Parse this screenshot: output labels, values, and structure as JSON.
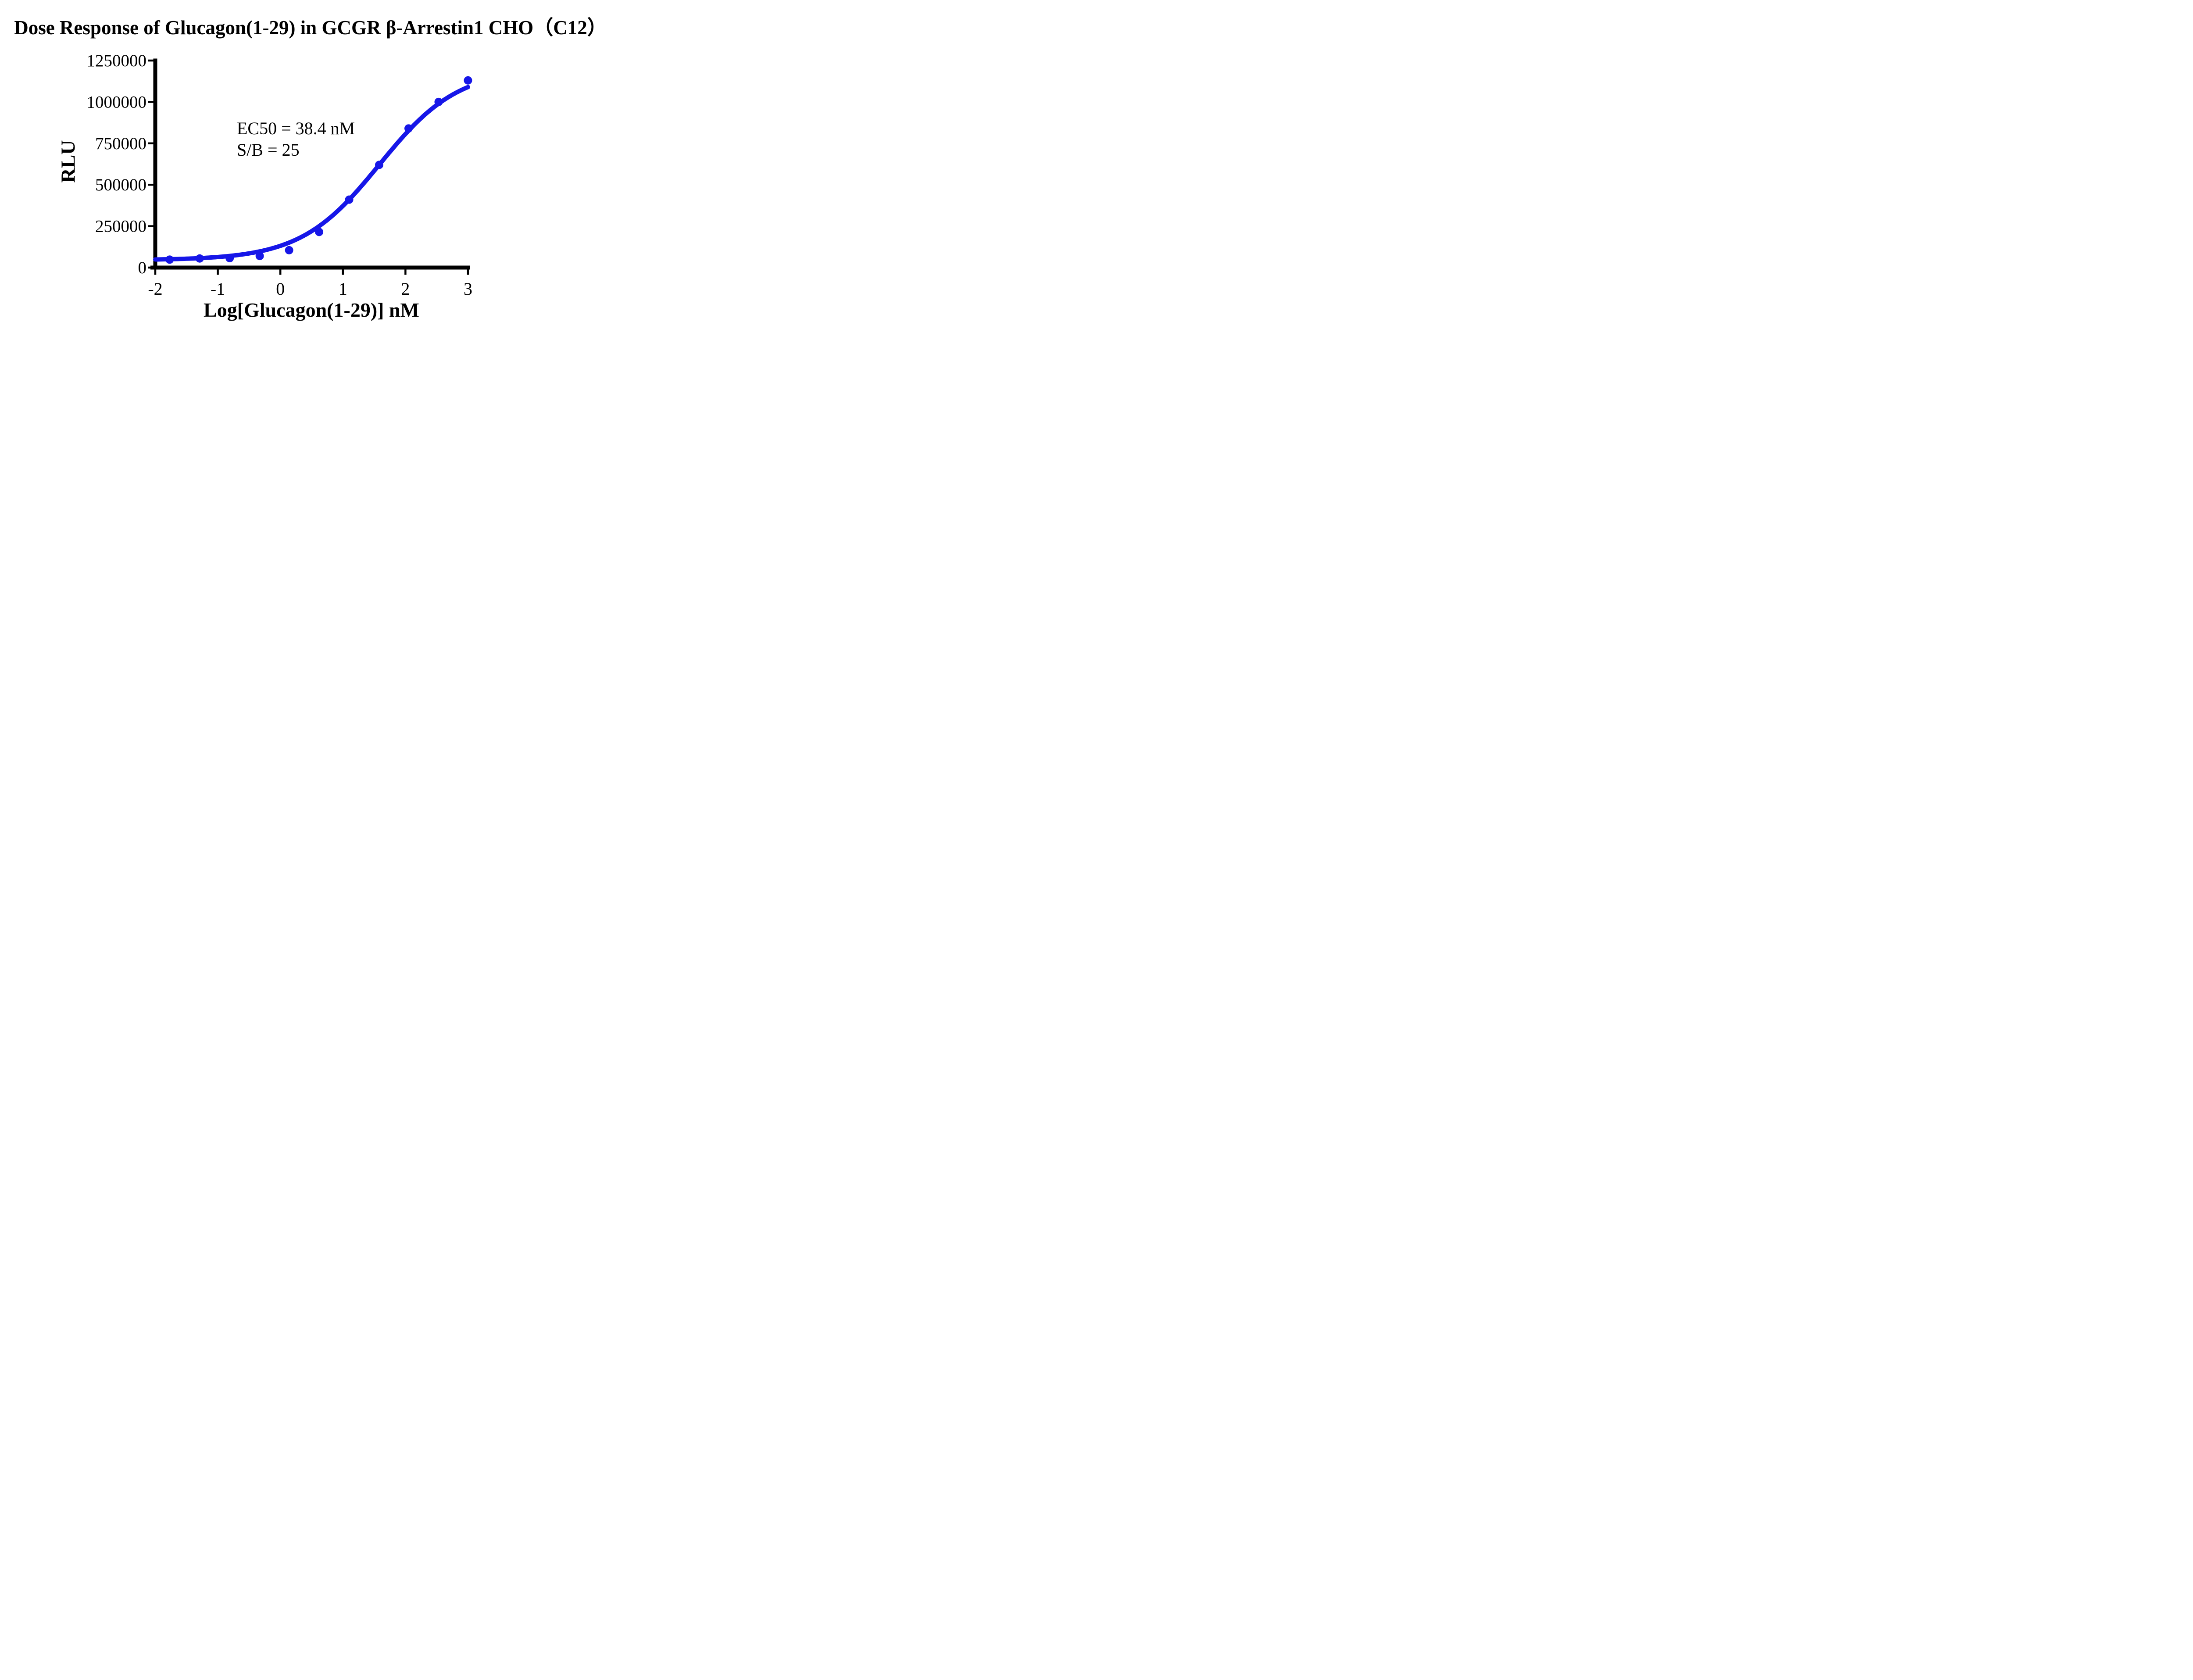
{
  "page": {
    "background_color": "#ffffff"
  },
  "chart_data": {
    "type": "scatter",
    "title": "Dose Response of Glucagon(1-29) in GCGR β-Arrestin1 CHO（C12）",
    "xlabel": "Log[Glucagon(1-29)] nM",
    "ylabel": "RLU",
    "xlim": [
      -2,
      3
    ],
    "ylim": [
      0,
      1250000
    ],
    "x_tick_values": [
      -2,
      -1,
      0,
      1,
      2,
      3
    ],
    "x_tick_labels": [
      "-2",
      "-1",
      "0",
      "1",
      "2",
      "3"
    ],
    "y_tick_values": [
      0,
      250000,
      500000,
      750000,
      1000000,
      1250000
    ],
    "y_tick_labels": [
      "0",
      "250000",
      "500000",
      "750000",
      "1000000",
      "1250000"
    ],
    "grid": false,
    "legend": "none",
    "axis_color": "#000000",
    "annotations": {
      "line1": "EC50 = 38.4 nM",
      "line2": "S/B = 25"
    },
    "ec50_nM": 38.4,
    "signal_to_background": 25,
    "series": [
      {
        "name": "Glucagon(1-29)",
        "color": "#1616e8",
        "marker": "circle",
        "points": [
          {
            "x": -1.77,
            "y": 48000
          },
          {
            "x": -1.29,
            "y": 55000
          },
          {
            "x": -0.81,
            "y": 57000
          },
          {
            "x": -0.33,
            "y": 70000
          },
          {
            "x": 0.14,
            "y": 105000
          },
          {
            "x": 0.62,
            "y": 215000
          },
          {
            "x": 1.1,
            "y": 410000
          },
          {
            "x": 1.58,
            "y": 620000
          },
          {
            "x": 2.05,
            "y": 840000
          },
          {
            "x": 2.53,
            "y": 1000000
          },
          {
            "x": 3.0,
            "y": 1130000
          }
        ]
      }
    ],
    "fit_curve": {
      "model": "four_parameter_logistic",
      "bottom": 45000,
      "top": 1200000,
      "log_ec50": 1.585,
      "hill_slope": 0.69,
      "x_start": -2,
      "x_end": 3
    }
  }
}
